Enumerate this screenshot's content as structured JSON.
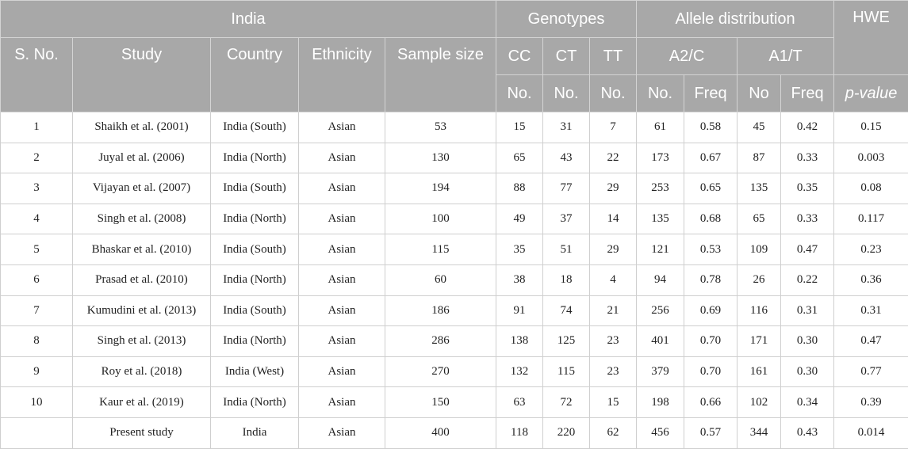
{
  "header": {
    "region": "India",
    "genotypes": "Genotypes",
    "allele_distribution": "Allele distribution",
    "hwe": "HWE",
    "sno": "S. No.",
    "study": "Study",
    "country": "Country",
    "ethnicity": "Ethnicity",
    "sample_size": "Sample size",
    "cc": "CC",
    "ct": "CT",
    "tt": "TT",
    "a2c": "A2/C",
    "a1t": "A1/T",
    "no_cc": "No.",
    "no_ct": "No.",
    "no_tt": "No.",
    "no_a2": "No.",
    "freq_a2": "Freq",
    "no_a1": "No",
    "freq_a1": "Freq",
    "pvalue": "p-value"
  },
  "rows": [
    {
      "sno": "1",
      "study": "Shaikh et al. (2001)",
      "country": "India (South)",
      "ethnicity": "Asian",
      "sample_size": "53",
      "cc": "15",
      "ct": "31",
      "tt": "7",
      "a2_no": "61",
      "a2_freq": "0.58",
      "a1_no": "45",
      "a1_freq": "0.42",
      "p": "0.15"
    },
    {
      "sno": "2",
      "study": "Juyal et al. (2006)",
      "country": "India (North)",
      "ethnicity": "Asian",
      "sample_size": "130",
      "cc": "65",
      "ct": "43",
      "tt": "22",
      "a2_no": "173",
      "a2_freq": "0.67",
      "a1_no": "87",
      "a1_freq": "0.33",
      "p": "0.003"
    },
    {
      "sno": "3",
      "study": "Vijayan et al. (2007)",
      "country": "India (South)",
      "ethnicity": "Asian",
      "sample_size": "194",
      "cc": "88",
      "ct": "77",
      "tt": "29",
      "a2_no": "253",
      "a2_freq": "0.65",
      "a1_no": "135",
      "a1_freq": "0.35",
      "p": "0.08"
    },
    {
      "sno": "4",
      "study": "Singh et al. (2008)",
      "country": "India (North)",
      "ethnicity": "Asian",
      "sample_size": "100",
      "cc": "49",
      "ct": "37",
      "tt": "14",
      "a2_no": "135",
      "a2_freq": "0.68",
      "a1_no": "65",
      "a1_freq": "0.33",
      "p": "0.117"
    },
    {
      "sno": "5",
      "study": "Bhaskar et al. (2010)",
      "country": "India (South)",
      "ethnicity": "Asian",
      "sample_size": "115",
      "cc": "35",
      "ct": "51",
      "tt": "29",
      "a2_no": "121",
      "a2_freq": "0.53",
      "a1_no": "109",
      "a1_freq": "0.47",
      "p": "0.23"
    },
    {
      "sno": "6",
      "study": "Prasad et al. (2010)",
      "country": "India (North)",
      "ethnicity": "Asian",
      "sample_size": "60",
      "cc": "38",
      "ct": "18",
      "tt": "4",
      "a2_no": "94",
      "a2_freq": "0.78",
      "a1_no": "26",
      "a1_freq": "0.22",
      "p": "0.36"
    },
    {
      "sno": "7",
      "study": "Kumudini et al. (2013)",
      "country": "India (South)",
      "ethnicity": "Asian",
      "sample_size": "186",
      "cc": "91",
      "ct": "74",
      "tt": "21",
      "a2_no": "256",
      "a2_freq": "0.69",
      "a1_no": "116",
      "a1_freq": "0.31",
      "p": "0.31"
    },
    {
      "sno": "8",
      "study": "Singh et al. (2013)",
      "country": "India (North)",
      "ethnicity": "Asian",
      "sample_size": "286",
      "cc": "138",
      "ct": "125",
      "tt": "23",
      "a2_no": "401",
      "a2_freq": "0.70",
      "a1_no": "171",
      "a1_freq": "0.30",
      "p": "0.47"
    },
    {
      "sno": "9",
      "study": "Roy et al. (2018)",
      "country": "India (West)",
      "ethnicity": "Asian",
      "sample_size": "270",
      "cc": "132",
      "ct": "115",
      "tt": "23",
      "a2_no": "379",
      "a2_freq": "0.70",
      "a1_no": "161",
      "a1_freq": "0.30",
      "p": "0.77"
    },
    {
      "sno": "10",
      "study": "Kaur et al. (2019)",
      "country": "India (North)",
      "ethnicity": "Asian",
      "sample_size": "150",
      "cc": "63",
      "ct": "72",
      "tt": "15",
      "a2_no": "198",
      "a2_freq": "0.66",
      "a1_no": "102",
      "a1_freq": "0.34",
      "p": "0.39"
    },
    {
      "sno": "",
      "study": "Present study",
      "country": "India",
      "ethnicity": "Asian",
      "sample_size": "400",
      "cc": "118",
      "ct": "220",
      "tt": "62",
      "a2_no": "456",
      "a2_freq": "0.57",
      "a1_no": "344",
      "a1_freq": "0.43",
      "p": "0.014"
    }
  ]
}
